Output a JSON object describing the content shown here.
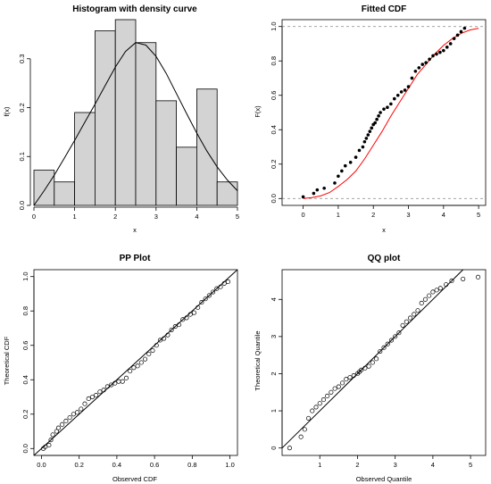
{
  "chart_data": [
    {
      "type": "histogram",
      "title": "Histogram with density curve",
      "xlabel": "x",
      "ylabel": "f(x)",
      "xlim": [
        0,
        5
      ],
      "ylim": [
        0,
        0.38
      ],
      "xticks": [
        "0",
        "1",
        "2",
        "3",
        "4",
        "5"
      ],
      "yticks": [
        "0.0",
        "0.1",
        "0.2",
        "0.3"
      ],
      "bins": [
        {
          "x0": 0.0,
          "x1": 0.5,
          "density": 0.072
        },
        {
          "x0": 0.5,
          "x1": 1.0,
          "density": 0.048
        },
        {
          "x0": 1.0,
          "x1": 1.5,
          "density": 0.19
        },
        {
          "x0": 1.5,
          "x1": 2.0,
          "density": 0.357
        },
        {
          "x0": 2.0,
          "x1": 2.5,
          "density": 0.38
        },
        {
          "x0": 2.5,
          "x1": 3.0,
          "density": 0.333
        },
        {
          "x0": 3.0,
          "x1": 3.5,
          "density": 0.214
        },
        {
          "x0": 3.5,
          "x1": 4.0,
          "density": 0.119
        },
        {
          "x0": 4.0,
          "x1": 4.5,
          "density": 0.238
        },
        {
          "x0": 4.5,
          "x1": 5.0,
          "density": 0.048
        }
      ],
      "density_curve": {
        "x": [
          0.0,
          0.25,
          0.5,
          0.75,
          1.0,
          1.25,
          1.5,
          1.75,
          2.0,
          2.25,
          2.5,
          2.75,
          3.0,
          3.25,
          3.5,
          3.75,
          4.0,
          4.25,
          4.5,
          4.75,
          5.0
        ],
        "y": [
          0.0,
          0.03,
          0.062,
          0.097,
          0.133,
          0.17,
          0.207,
          0.245,
          0.283,
          0.315,
          0.333,
          0.328,
          0.305,
          0.27,
          0.229,
          0.188,
          0.148,
          0.111,
          0.079,
          0.052,
          0.03
        ]
      }
    },
    {
      "type": "line",
      "title": "Fitted CDF",
      "xlabel": "x",
      "ylabel": "F(x)",
      "xlim": [
        -0.6,
        5.2
      ],
      "ylim": [
        -0.04,
        1.04
      ],
      "xticks": [
        "0",
        "1",
        "2",
        "3",
        "4",
        "5"
      ],
      "yticks": [
        "0.0",
        "0.2",
        "0.4",
        "0.6",
        "0.8",
        "1.0"
      ],
      "reference_lines": [
        0,
        1
      ],
      "ecdf": {
        "x": [
          0.0,
          0.3,
          0.4,
          0.6,
          0.9,
          1.0,
          1.1,
          1.2,
          1.35,
          1.5,
          1.6,
          1.7,
          1.75,
          1.8,
          1.85,
          1.9,
          1.95,
          2.0,
          2.05,
          2.1,
          2.15,
          2.2,
          2.3,
          2.4,
          2.5,
          2.6,
          2.7,
          2.8,
          2.9,
          3.0,
          3.1,
          3.2,
          3.3,
          3.4,
          3.5,
          3.6,
          3.7,
          3.8,
          3.9,
          4.0,
          4.1,
          4.2,
          4.3,
          4.4,
          4.5,
          4.6
        ],
        "y": [
          0.01,
          0.03,
          0.05,
          0.06,
          0.09,
          0.13,
          0.16,
          0.19,
          0.21,
          0.24,
          0.28,
          0.3,
          0.33,
          0.35,
          0.37,
          0.39,
          0.41,
          0.43,
          0.44,
          0.46,
          0.48,
          0.5,
          0.52,
          0.53,
          0.55,
          0.58,
          0.6,
          0.62,
          0.63,
          0.65,
          0.7,
          0.74,
          0.76,
          0.78,
          0.79,
          0.81,
          0.83,
          0.84,
          0.85,
          0.86,
          0.88,
          0.9,
          0.93,
          0.95,
          0.97,
          0.99
        ]
      },
      "fitted_cdf": {
        "color": "#ff0000",
        "x": [
          0.0,
          0.25,
          0.5,
          0.75,
          1.0,
          1.25,
          1.5,
          1.75,
          2.0,
          2.25,
          2.5,
          2.75,
          3.0,
          3.25,
          3.5,
          3.75,
          4.0,
          4.25,
          4.5,
          4.75,
          5.0
        ],
        "y": [
          0.0,
          0.005,
          0.015,
          0.035,
          0.07,
          0.11,
          0.16,
          0.23,
          0.31,
          0.39,
          0.48,
          0.56,
          0.64,
          0.72,
          0.78,
          0.84,
          0.89,
          0.93,
          0.96,
          0.98,
          0.99
        ]
      }
    },
    {
      "type": "scatter",
      "title": "PP Plot",
      "xlabel": "Observed CDF",
      "ylabel": "Theoretical CDF",
      "xlim": [
        -0.04,
        1.04
      ],
      "ylim": [
        -0.04,
        1.04
      ],
      "xticks": [
        "0.0",
        "0.2",
        "0.4",
        "0.6",
        "0.8",
        "1.0"
      ],
      "yticks": [
        "0.0",
        "0.2",
        "0.4",
        "0.6",
        "0.8",
        "1.0"
      ],
      "reference_line": "y=x",
      "points": {
        "x": [
          0.01,
          0.02,
          0.04,
          0.05,
          0.06,
          0.08,
          0.09,
          0.11,
          0.13,
          0.15,
          0.17,
          0.19,
          0.21,
          0.23,
          0.25,
          0.27,
          0.29,
          0.31,
          0.33,
          0.35,
          0.37,
          0.39,
          0.41,
          0.43,
          0.45,
          0.47,
          0.49,
          0.51,
          0.53,
          0.55,
          0.57,
          0.59,
          0.61,
          0.63,
          0.65,
          0.67,
          0.69,
          0.71,
          0.73,
          0.75,
          0.77,
          0.79,
          0.81,
          0.83,
          0.85,
          0.87,
          0.89,
          0.91,
          0.93,
          0.95,
          0.97,
          0.99
        ],
        "y": [
          0.0,
          0.01,
          0.02,
          0.05,
          0.08,
          0.1,
          0.12,
          0.14,
          0.16,
          0.18,
          0.2,
          0.21,
          0.23,
          0.26,
          0.29,
          0.3,
          0.31,
          0.33,
          0.34,
          0.36,
          0.37,
          0.38,
          0.39,
          0.39,
          0.41,
          0.45,
          0.47,
          0.48,
          0.5,
          0.52,
          0.55,
          0.57,
          0.6,
          0.63,
          0.64,
          0.66,
          0.69,
          0.71,
          0.72,
          0.75,
          0.76,
          0.78,
          0.79,
          0.82,
          0.85,
          0.87,
          0.89,
          0.91,
          0.93,
          0.94,
          0.96,
          0.97
        ]
      }
    },
    {
      "type": "scatter",
      "title": "QQ plot",
      "xlabel": "Observed Quantile",
      "ylabel": "Theoretical Quantile",
      "xlim": [
        0.0,
        5.4
      ],
      "ylim": [
        -0.2,
        4.8
      ],
      "xticks": [
        "1",
        "2",
        "3",
        "4",
        "5"
      ],
      "yticks": [
        "0",
        "1",
        "2",
        "3",
        "4"
      ],
      "reference_line": "y=x",
      "points": {
        "x": [
          0.2,
          0.5,
          0.6,
          0.7,
          0.8,
          0.9,
          1.0,
          1.1,
          1.2,
          1.3,
          1.4,
          1.5,
          1.6,
          1.7,
          1.8,
          1.9,
          2.0,
          2.05,
          2.1,
          2.2,
          2.3,
          2.4,
          2.5,
          2.6,
          2.7,
          2.8,
          2.9,
          3.0,
          3.1,
          3.2,
          3.3,
          3.4,
          3.5,
          3.6,
          3.7,
          3.8,
          3.9,
          4.0,
          4.1,
          4.2,
          4.35,
          4.5,
          4.8,
          5.2
        ],
        "y": [
          0.0,
          0.3,
          0.5,
          0.8,
          1.0,
          1.1,
          1.2,
          1.3,
          1.4,
          1.5,
          1.6,
          1.65,
          1.75,
          1.85,
          1.9,
          1.95,
          2.0,
          2.05,
          2.1,
          2.15,
          2.2,
          2.3,
          2.4,
          2.6,
          2.7,
          2.8,
          2.9,
          3.0,
          3.1,
          3.3,
          3.4,
          3.5,
          3.6,
          3.7,
          3.9,
          4.0,
          4.1,
          4.2,
          4.25,
          4.3,
          4.4,
          4.5,
          4.55,
          4.6
        ]
      }
    }
  ]
}
